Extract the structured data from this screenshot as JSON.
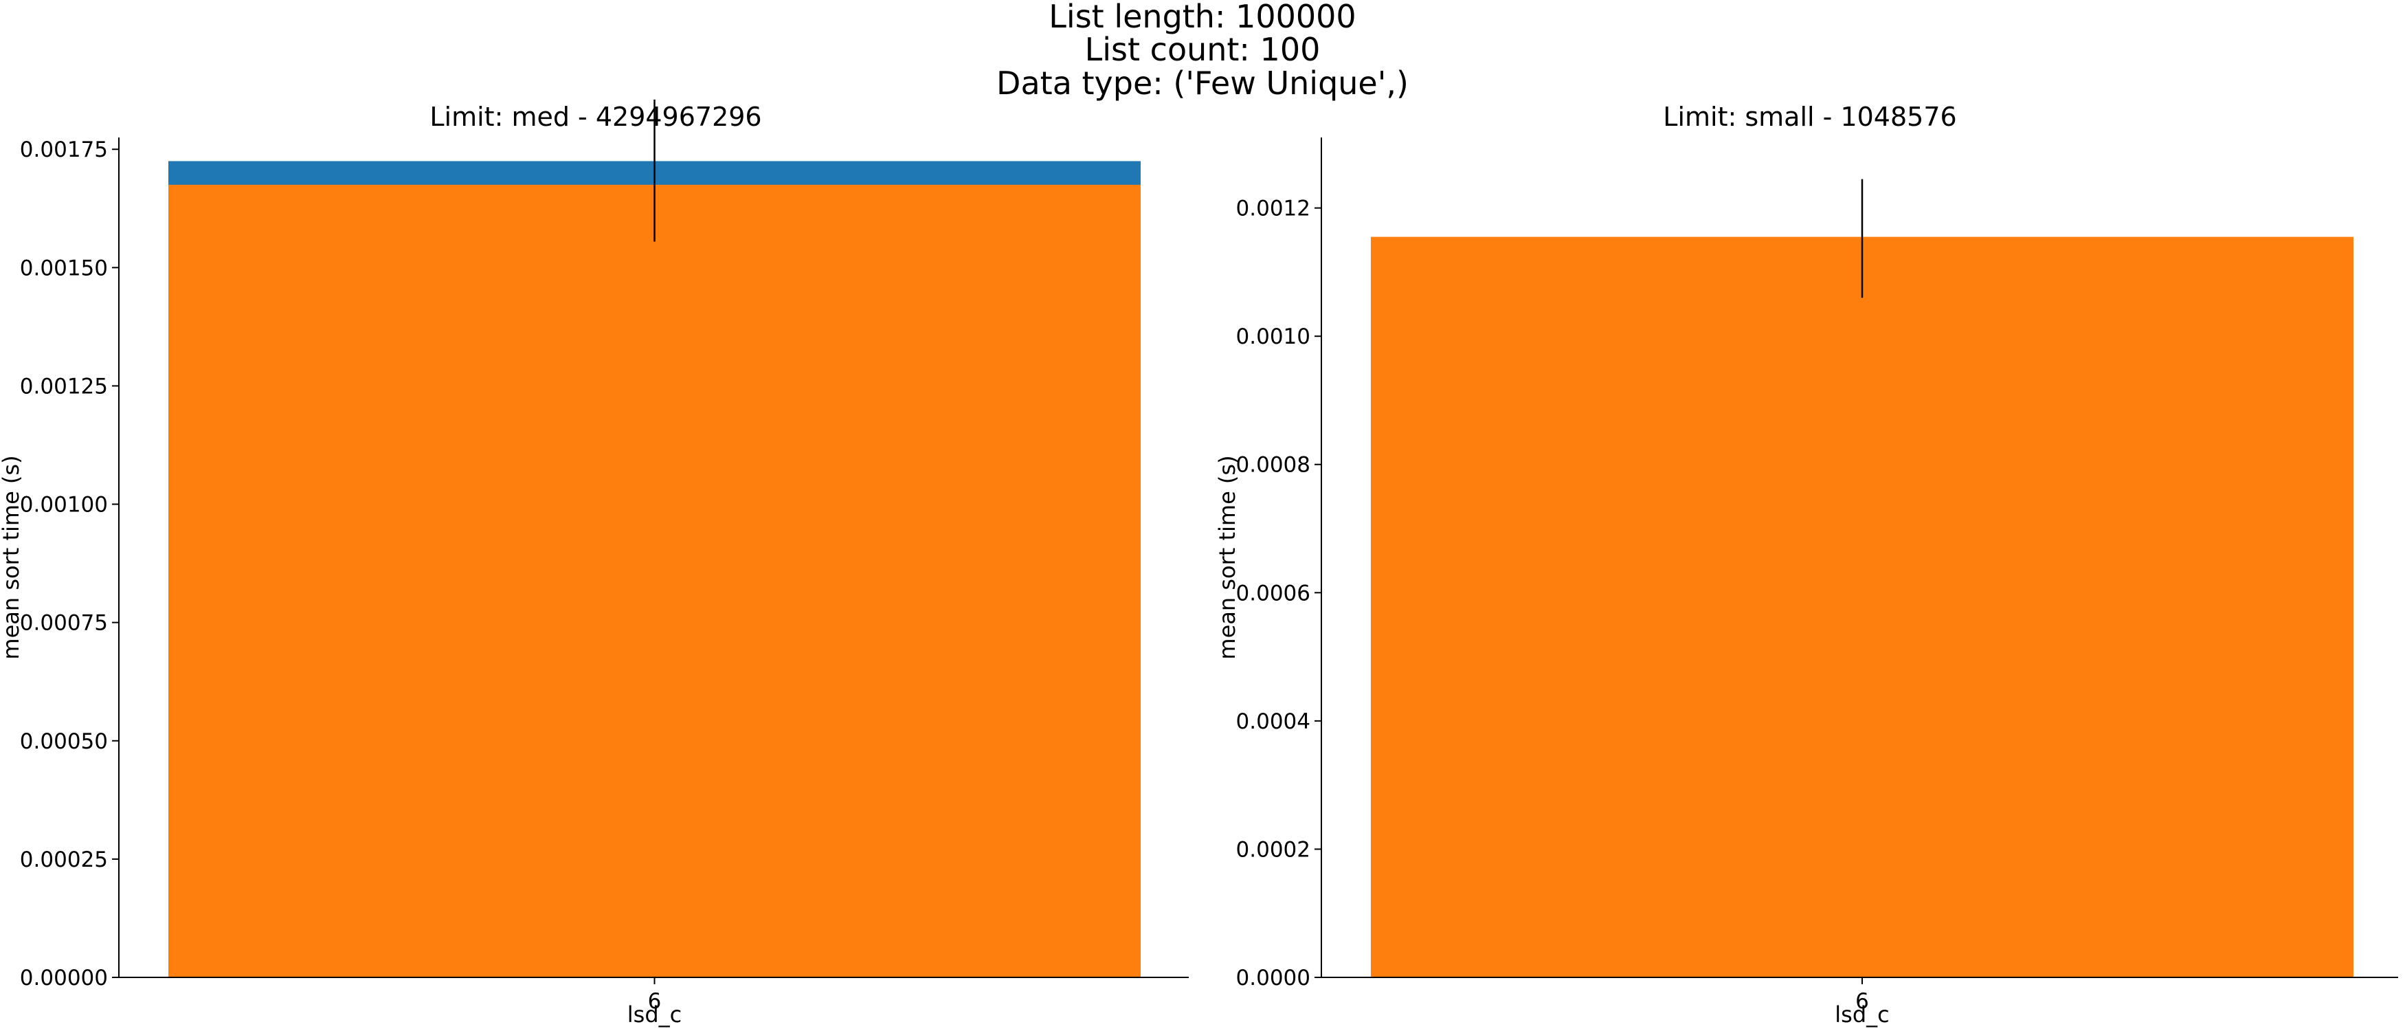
{
  "suptitle": {
    "line1": "List length: 100000",
    "line2": "List count: 100",
    "line3": "Data type: ('Few Unique',)"
  },
  "colors": {
    "blue": "#1f77b4",
    "orange": "#ff7f0e",
    "axis": "#000000"
  },
  "chart_data": [
    {
      "type": "bar",
      "title": "Limit: med - 4294967296",
      "xlabel": "lsd_c",
      "ylabel": "mean sort time (s)",
      "categories": [
        "6"
      ],
      "ylim": [
        0,
        0.001775
      ],
      "yticks": [
        "0.00000",
        "0.00025",
        "0.00050",
        "0.00075",
        "0.00100",
        "0.00125",
        "0.00150",
        "0.00175"
      ],
      "ytick_values": [
        0,
        0.00025,
        0.0005,
        0.00075,
        0.001,
        0.00125,
        0.0015,
        0.00175
      ],
      "grid": false,
      "series": [
        {
          "color": "#1f77b4",
          "values": [
            0.001725
          ],
          "err_low": [
            0.001555
          ],
          "err_high": [
            0.001855
          ]
        },
        {
          "color": "#ff7f0e",
          "values": [
            0.001675
          ]
        }
      ]
    },
    {
      "type": "bar",
      "title": "Limit: small - 1048576",
      "xlabel": "lsd_c",
      "ylabel": "mean sort time (s)",
      "categories": [
        "6"
      ],
      "ylim": [
        0,
        0.00131
      ],
      "yticks": [
        "0.0000",
        "0.0002",
        "0.0004",
        "0.0006",
        "0.0008",
        "0.0010",
        "0.0012"
      ],
      "ytick_values": [
        0,
        0.0002,
        0.0004,
        0.0006,
        0.0008,
        0.001,
        0.0012
      ],
      "grid": false,
      "series": [
        {
          "color": "#ff7f0e",
          "values": [
            0.001155
          ],
          "err_low": [
            0.00106
          ],
          "err_high": [
            0.001245
          ]
        }
      ]
    }
  ]
}
